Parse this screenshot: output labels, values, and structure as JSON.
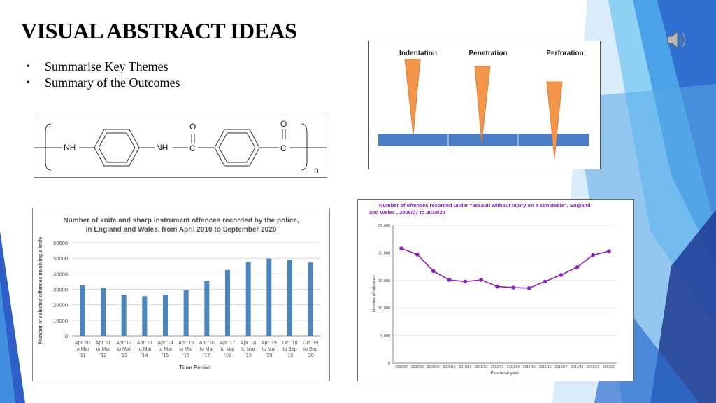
{
  "slide": {
    "title": "VISUAL ABSTRACT IDEAS",
    "bullets": [
      "Summarise Key Themes",
      "Summary of the Outcomes"
    ],
    "bullet_glyph": "•",
    "accent_colors": [
      "#1f3a93",
      "#2e6fd0",
      "#4aa3e8",
      "#8fd0f5"
    ]
  },
  "speaker_icon": "speaker-audio-icon",
  "chemistry": {
    "nh1": "NH",
    "nh2": "NH",
    "c1": "C",
    "c2": "C",
    "o1": "O",
    "o2": "O",
    "n": "n"
  },
  "needles": {
    "labels": [
      "Indentation",
      "Penetration",
      "Perforation"
    ],
    "depth": [
      0,
      0.5,
      1
    ]
  },
  "chart_data": [
    {
      "type": "bar",
      "title": "Number of knife and sharp instrument offences recorded by the police, in England and Wales, from April 2010 to September 2020",
      "title_lines": [
        "Number of knife and sharp instrument offences recorded by the police,",
        "in England and Wales, from April 2010 to September 2020"
      ],
      "xlabel": "Time Period",
      "ylabel": "Number of selected offences involving a knife",
      "ylim": [
        0,
        60000
      ],
      "yticks": [
        0,
        10000,
        20000,
        30000,
        40000,
        50000,
        60000
      ],
      "grid": true,
      "color": "#4a86c0",
      "categories": [
        [
          "Apr '10",
          "to Mar",
          "'11"
        ],
        [
          "Apr '11",
          "to Mar",
          "'12"
        ],
        [
          "Apr '12",
          "to Mar",
          "'13"
        ],
        [
          "Apr '13",
          "to Mar",
          "'14"
        ],
        [
          "Apr '14",
          "to Mar",
          "'15"
        ],
        [
          "Apr '15",
          "to Mar",
          "'16"
        ],
        [
          "Apr '16",
          "to Mar",
          "'17"
        ],
        [
          "Apr '17",
          "to Mar",
          "'18"
        ],
        [
          "Apr '18",
          "to Mar",
          "'19"
        ],
        [
          "Apr '19",
          "to Mar",
          "'20"
        ],
        [
          "Oct '18",
          "to Sep",
          "'19"
        ],
        [
          "Oct '19",
          "to Sep",
          "'20"
        ]
      ],
      "values": [
        32500,
        31000,
        26500,
        25600,
        26500,
        29500,
        35500,
        42500,
        47400,
        49800,
        48700,
        47300
      ]
    },
    {
      "type": "line",
      "title": "Number of offences recorded under “assault without injury on a constable”, England and Wales , 2006/07 to 2019/20",
      "title_lines": [
        "Number of offences recorded under “assault without injury on a constable”, England",
        "and Wales , 2006/07 to 2019/20"
      ],
      "xlabel": "Financial year",
      "ylabel": "Number of offences",
      "ylim": [
        0,
        25000
      ],
      "yticks": [
        "0",
        "5,000",
        "10,000",
        "15,000",
        "20,000",
        "25,000"
      ],
      "grid": true,
      "color": "#8e1fc4",
      "title_color": "#8e1fc4",
      "categories": [
        "2006/07",
        "2007/08",
        "2008/09",
        "2009/10",
        "2010/11",
        "2011/12",
        "2012/13",
        "2013/14",
        "2014/15",
        "2015/16",
        "2016/17",
        "2017/18",
        "2018/19",
        "2019/20"
      ],
      "values": [
        20800,
        19700,
        16700,
        15100,
        14800,
        15100,
        13900,
        13700,
        13600,
        14800,
        16000,
        17400,
        19600,
        20300
      ]
    }
  ]
}
